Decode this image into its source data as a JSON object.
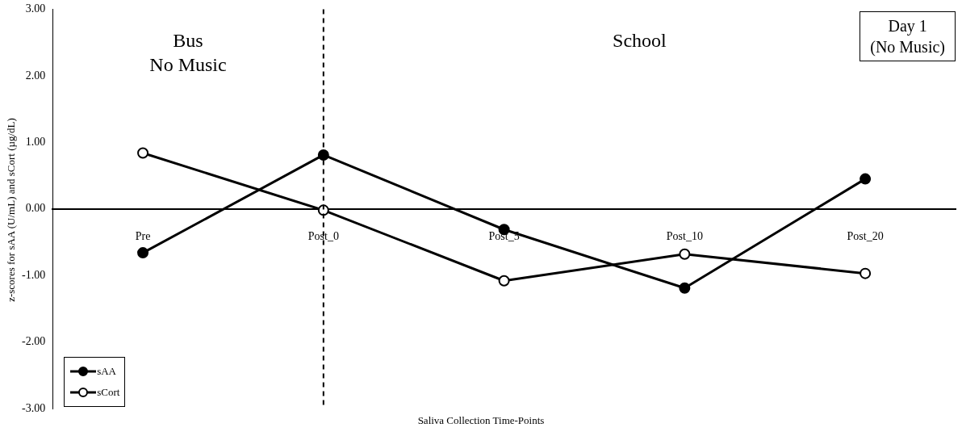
{
  "chart_data": {
    "type": "line",
    "xlabel": "Saliva Collection Time-Points",
    "ylabel": "z-scores for sAA (U/mL) and sCort (µg/dL)",
    "categories": [
      "Pre",
      "Post_0",
      "Post_5",
      "Post_10",
      "Post_20"
    ],
    "series": [
      {
        "name": "sAA",
        "color": "#000000",
        "values": [
          -0.66,
          0.81,
          -0.31,
          -1.19,
          0.45
        ]
      },
      {
        "name": "sCort",
        "color": "#000000",
        "values": [
          0.84,
          -0.02,
          -1.08,
          -0.68,
          -0.97
        ]
      }
    ],
    "ylim": [
      -3,
      3
    ],
    "yticks": [
      {
        "value": -3,
        "label": "-3.00"
      },
      {
        "value": -2,
        "label": "-2.00"
      },
      {
        "value": -1,
        "label": "-1.00"
      },
      {
        "value": 0,
        "label": "0.00"
      },
      {
        "value": 1,
        "label": "1.00"
      },
      {
        "value": 2,
        "label": "2.00"
      },
      {
        "value": 3,
        "label": "3.00"
      }
    ],
    "ref_lines": [
      {
        "axis": "x",
        "value": "Post_0",
        "color": "#000000",
        "line_style": "dashed"
      }
    ],
    "annotations": [
      "Bus\nNo Music",
      "School",
      "Day 1\n(No Music)"
    ],
    "marker": "circle",
    "line_style": "solid",
    "grid": false,
    "legend": "bottom left"
  }
}
